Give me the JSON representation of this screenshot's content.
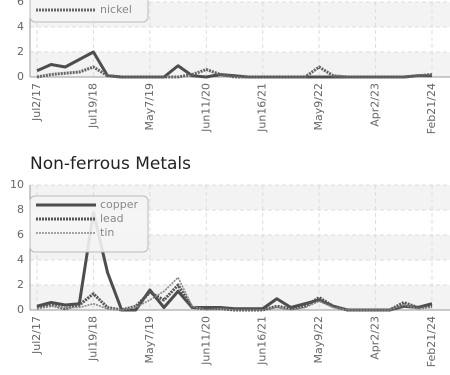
{
  "chart_data": [
    {
      "type": "line",
      "categories": [
        "Jul2/17",
        null,
        null,
        null,
        "Jul19/18",
        null,
        null,
        null,
        "May7/19",
        null,
        null,
        null,
        "Jun11/20",
        null,
        null,
        null,
        "Jun16/21",
        null,
        null,
        null,
        "May9/22",
        null,
        null,
        null,
        "Apr2/23",
        null,
        null,
        null,
        "Feb21/24"
      ],
      "series": [
        {
          "color": "#4d4d4d",
          "line_style": "solid",
          "values": [
            0.5,
            1.0,
            0.8,
            1.4,
            2.0,
            0.1,
            0,
            0,
            0,
            0,
            0.9,
            0.1,
            0,
            0.2,
            0.1,
            0,
            0,
            0,
            0,
            0,
            0,
            0,
            0,
            0,
            0,
            0,
            0,
            0.1,
            0.1
          ]
        },
        {
          "name": "nickel",
          "color": "#666666",
          "line_style": "dotted",
          "values": [
            0,
            0.2,
            0.3,
            0.4,
            0.8,
            0.1,
            0,
            0,
            0,
            0,
            0,
            0.2,
            0.6,
            0.2,
            0,
            0,
            0,
            0,
            0,
            0,
            0.8,
            0.1,
            0,
            0,
            0,
            0,
            0,
            0.1,
            0.2
          ]
        }
      ],
      "ylim": [
        0,
        6
      ],
      "yticks": [
        0,
        2,
        4,
        6
      ],
      "grid": true
    },
    {
      "type": "line",
      "title": "Non-ferrous Metals",
      "categories": [
        "Jul2/17",
        null,
        null,
        null,
        "Jul19/18",
        null,
        null,
        null,
        "May7/19",
        null,
        null,
        null,
        "Jun11/20",
        null,
        null,
        null,
        "Jun16/21",
        null,
        null,
        null,
        "May9/22",
        null,
        null,
        null,
        "Apr2/23",
        null,
        null,
        null,
        "Feb21/24"
      ],
      "series": [
        {
          "name": "copper",
          "color": "#4d4d4d",
          "line_style": "solid",
          "values": [
            0.3,
            0.6,
            0.4,
            0.5,
            7.8,
            3.0,
            0,
            0,
            1.6,
            0.2,
            1.5,
            0.2,
            0.2,
            0.2,
            0.1,
            0.1,
            0.1,
            0.9,
            0.2,
            0.5,
            0.8,
            0.3,
            0,
            0,
            0,
            0,
            0.3,
            0.2,
            0.5
          ]
        },
        {
          "name": "lead",
          "color": "#555555",
          "line_style": "dotted",
          "values": [
            0.2,
            0.4,
            0.1,
            0.4,
            1.3,
            0.2,
            0,
            0.3,
            1.4,
            0.8,
            2.0,
            0.2,
            0.1,
            0.1,
            0,
            0,
            0,
            0.3,
            0.1,
            0.3,
            1.0,
            0.3,
            0,
            0,
            0,
            0,
            0.6,
            0.2,
            0.3
          ]
        },
        {
          "name": "tin",
          "color": "#888888",
          "line_style": "thin-dotted",
          "values": [
            0.1,
            0.3,
            0.2,
            0.2,
            0.5,
            0.1,
            0,
            0.2,
            0.8,
            1.5,
            2.6,
            0.3,
            0,
            0.1,
            0,
            0,
            0,
            0.2,
            0,
            0.2,
            0.7,
            0.2,
            0,
            0,
            0,
            0,
            0.4,
            0.1,
            0.2
          ]
        }
      ],
      "ylim": [
        0,
        10
      ],
      "yticks": [
        0,
        2,
        4,
        6,
        8,
        10
      ],
      "grid": true
    }
  ]
}
